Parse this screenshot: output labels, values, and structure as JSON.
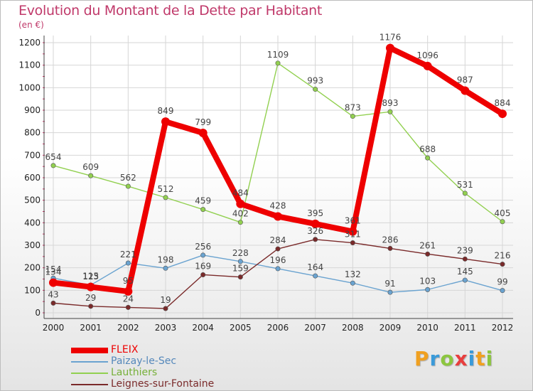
{
  "header": {
    "title": "Evolution du Montant de la Dette par Habitant",
    "unit": "(en €)"
  },
  "logo": {
    "letters": [
      "P",
      "r",
      "o",
      "x",
      "i",
      "t",
      "i"
    ],
    "colors": [
      "#f0a020",
      "#3a9ad9",
      "#8cc63f",
      "#e83e3e",
      "#3a9ad9",
      "#f0a020",
      "#8cc63f"
    ]
  },
  "chart_data": {
    "type": "line",
    "title": "Evolution du Montant de la Dette par Habitant",
    "ylabel": "(en €)",
    "xlabel": "",
    "x": [
      "2000",
      "2001",
      "2002",
      "2003",
      "2004",
      "2005",
      "2006",
      "2007",
      "2008",
      "2009",
      "2010",
      "2011",
      "2012"
    ],
    "ylim": [
      0,
      1200
    ],
    "yticks": [
      0,
      100,
      200,
      300,
      400,
      500,
      600,
      700,
      800,
      900,
      1000,
      1100,
      1200
    ],
    "grid": true,
    "legend_position": "bottom-left",
    "series": [
      {
        "name": "FLEIX",
        "color": "#ee0000",
        "values": [
          134,
          115,
          95,
          849,
          799,
          484,
          428,
          395,
          361,
          1176,
          1096,
          987,
          884
        ],
        "labels": [
          "134",
          "115",
          "95",
          "849",
          "799",
          "484",
          "428",
          "395",
          "361",
          "1176",
          "1096",
          "987",
          "884"
        ]
      },
      {
        "name": "Paizay-le-Sec",
        "color": "#6aa3d0",
        "values": [
          154,
          123,
          221,
          198,
          256,
          228,
          196,
          164,
          132,
          91,
          103,
          145,
          99
        ],
        "labels": [
          "154",
          "123",
          "221",
          "198",
          "256",
          "228",
          "196",
          "164",
          "132",
          "91",
          "103",
          "145",
          "99"
        ]
      },
      {
        "name": "Lauthiers",
        "color": "#92d050",
        "values": [
          654,
          609,
          562,
          512,
          459,
          402,
          1109,
          993,
          873,
          893,
          688,
          531,
          405
        ],
        "labels": [
          "654",
          "609",
          "562",
          "512",
          "459",
          "402",
          "1109",
          "993",
          "873",
          "893",
          "688",
          "531",
          "405"
        ]
      },
      {
        "name": "Leignes-sur-Fontaine",
        "color": "#7a2a2a",
        "values": [
          43,
          29,
          24,
          19,
          169,
          159,
          284,
          326,
          311,
          286,
          261,
          239,
          216
        ],
        "labels": [
          "43",
          "29",
          "24",
          "19",
          "169",
          "159",
          "284",
          "326",
          "311",
          "286",
          "261",
          "239",
          "216"
        ]
      }
    ]
  }
}
